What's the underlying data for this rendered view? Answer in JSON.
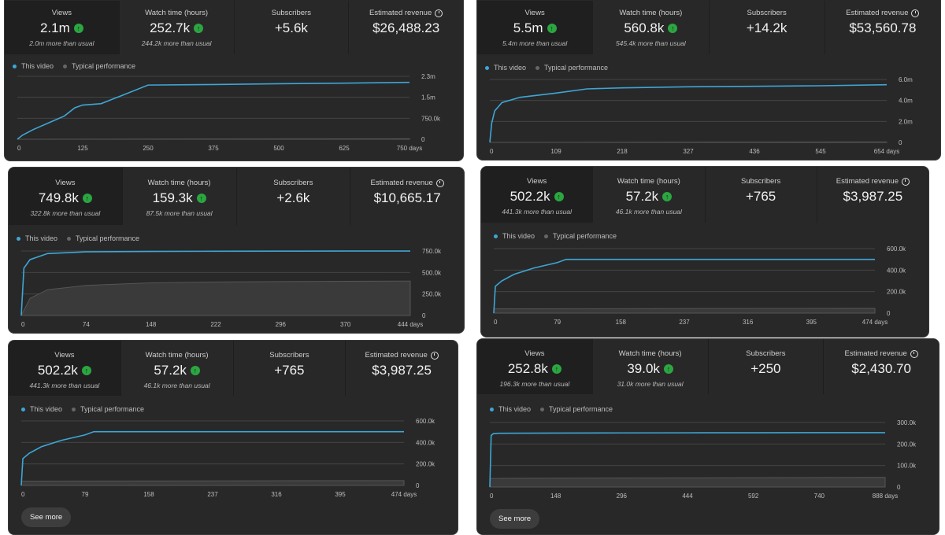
{
  "legend": {
    "this_video": "This video",
    "typical": "Typical performance"
  },
  "see_more": "See more",
  "panels": [
    {
      "metrics": [
        {
          "label": "Views",
          "value": "2.1m",
          "sub": "2.0m more than usual",
          "up": true
        },
        {
          "label": "Watch time (hours)",
          "value": "252.7k",
          "sub": "244.2k more than usual",
          "up": true
        },
        {
          "label": "Subscribers",
          "value": "+5.6k",
          "sub": ""
        },
        {
          "label": "Estimated revenue",
          "value": "$26,488.23",
          "sub": "",
          "clock": true
        }
      ]
    },
    {
      "metrics": [
        {
          "label": "Views",
          "value": "5.5m",
          "sub": "5.4m more than usual",
          "up": true
        },
        {
          "label": "Watch time (hours)",
          "value": "560.8k",
          "sub": "545.4k more than usual",
          "up": true
        },
        {
          "label": "Subscribers",
          "value": "+14.2k",
          "sub": ""
        },
        {
          "label": "Estimated revenue",
          "value": "$53,560.78",
          "sub": "",
          "clock": true
        }
      ]
    },
    {
      "metrics": [
        {
          "label": "Views",
          "value": "749.8k",
          "sub": "322.8k more than usual",
          "up": true
        },
        {
          "label": "Watch time (hours)",
          "value": "159.3k",
          "sub": "87.5k more than usual",
          "up": true
        },
        {
          "label": "Subscribers",
          "value": "+2.6k",
          "sub": ""
        },
        {
          "label": "Estimated revenue",
          "value": "$10,665.17",
          "sub": "",
          "clock": true
        }
      ]
    },
    {
      "metrics": [
        {
          "label": "Views",
          "value": "502.2k",
          "sub": "441.3k more than usual",
          "up": true
        },
        {
          "label": "Watch time (hours)",
          "value": "57.2k",
          "sub": "46.1k more than usual",
          "up": true
        },
        {
          "label": "Subscribers",
          "value": "+765",
          "sub": ""
        },
        {
          "label": "Estimated revenue",
          "value": "$3,987.25",
          "sub": "",
          "clock": true
        }
      ]
    },
    {
      "metrics": [
        {
          "label": "Views",
          "value": "502.2k",
          "sub": "441.3k more than usual",
          "up": true
        },
        {
          "label": "Watch time (hours)",
          "value": "57.2k",
          "sub": "46.1k more than usual",
          "up": true
        },
        {
          "label": "Subscribers",
          "value": "+765",
          "sub": ""
        },
        {
          "label": "Estimated revenue",
          "value": "$3,987.25",
          "sub": "",
          "clock": true
        }
      ]
    },
    {
      "metrics": [
        {
          "label": "Views",
          "value": "252.8k",
          "sub": "196.3k more than usual",
          "up": true
        },
        {
          "label": "Watch time (hours)",
          "value": "39.0k",
          "sub": "31.0k more than usual",
          "up": true
        },
        {
          "label": "Subscribers",
          "value": "+250",
          "sub": ""
        },
        {
          "label": "Estimated revenue",
          "value": "$2,430.70",
          "sub": "",
          "clock": true
        }
      ]
    }
  ],
  "colors": {
    "this_video": "#3ea6d6",
    "typical": "#555555",
    "grid": "#444444"
  },
  "chart_data": [
    {
      "type": "line",
      "xlabel": "",
      "ylabel": "",
      "xlim": [
        0,
        750
      ],
      "ylim": [
        0,
        2300000
      ],
      "x_ticks": [
        "0",
        "125",
        "250",
        "375",
        "500",
        "625",
        "750 days"
      ],
      "y_ticks": [
        "2.3m",
        "1.5m",
        "750.0k",
        "0"
      ],
      "series": [
        {
          "name": "This video",
          "x": [
            0,
            10,
            30,
            60,
            90,
            110,
            125,
            160,
            200,
            250,
            375,
            500,
            625,
            750
          ],
          "y": [
            0,
            150000,
            350000,
            600000,
            850000,
            1150000,
            1250000,
            1300000,
            1600000,
            1980000,
            2000000,
            2030000,
            2050000,
            2080000
          ]
        },
        {
          "name": "Typical performance",
          "x": [
            0,
            750
          ],
          "y": [
            0,
            20000
          ]
        }
      ]
    },
    {
      "type": "line",
      "xlabel": "",
      "ylabel": "",
      "xlim": [
        0,
        654
      ],
      "ylim": [
        0,
        6000000
      ],
      "x_ticks": [
        "0",
        "109",
        "218",
        "327",
        "436",
        "545",
        "654 days"
      ],
      "y_ticks": [
        "6.0m",
        "4.0m",
        "2.0m",
        "0"
      ],
      "series": [
        {
          "name": "This video",
          "x": [
            0,
            3,
            8,
            20,
            50,
            109,
            160,
            218,
            327,
            436,
            545,
            654
          ],
          "y": [
            0,
            1800000,
            3000000,
            3800000,
            4300000,
            4700000,
            5100000,
            5200000,
            5300000,
            5350000,
            5400000,
            5500000
          ]
        },
        {
          "name": "Typical performance",
          "x": [
            0,
            654
          ],
          "y": [
            0,
            50000
          ]
        }
      ]
    },
    {
      "type": "line",
      "xlabel": "",
      "ylabel": "",
      "xlim": [
        0,
        444
      ],
      "ylim": [
        0,
        750000
      ],
      "x_ticks": [
        "0",
        "74",
        "148",
        "222",
        "296",
        "370",
        "444 days"
      ],
      "y_ticks": [
        "750.0k",
        "500.0k",
        "250.0k",
        "0"
      ],
      "series": [
        {
          "name": "This video",
          "x": [
            0,
            3,
            10,
            30,
            74,
            148,
            222,
            296,
            370,
            444
          ],
          "y": [
            0,
            550000,
            650000,
            720000,
            740000,
            745000,
            747000,
            748000,
            749000,
            749800
          ]
        },
        {
          "name": "Typical performance",
          "x": [
            0,
            10,
            30,
            74,
            148,
            222,
            296,
            370,
            444
          ],
          "y": [
            0,
            200000,
            300000,
            350000,
            380000,
            390000,
            395000,
            398000,
            400000
          ]
        }
      ]
    },
    {
      "type": "line",
      "xlabel": "",
      "ylabel": "",
      "xlim": [
        0,
        474
      ],
      "ylim": [
        0,
        600000
      ],
      "x_ticks": [
        "0",
        "79",
        "158",
        "237",
        "316",
        "395",
        "474 days"
      ],
      "y_ticks": [
        "600.0k",
        "400.0k",
        "200.0k",
        "0"
      ],
      "series": [
        {
          "name": "This video",
          "x": [
            0,
            2,
            10,
            25,
            50,
            79,
            90,
            120,
            158,
            237,
            316,
            395,
            474
          ],
          "y": [
            0,
            250000,
            300000,
            360000,
            420000,
            470000,
            500000,
            500000,
            500000,
            500000,
            500000,
            500000,
            500000
          ]
        },
        {
          "name": "Typical performance",
          "x": [
            0,
            474
          ],
          "y": [
            40000,
            45000
          ]
        }
      ]
    },
    {
      "type": "line",
      "xlabel": "",
      "ylabel": "",
      "xlim": [
        0,
        474
      ],
      "ylim": [
        0,
        600000
      ],
      "x_ticks": [
        "0",
        "79",
        "158",
        "237",
        "316",
        "395",
        "474 days"
      ],
      "y_ticks": [
        "600.0k",
        "400.0k",
        "200.0k",
        "0"
      ],
      "series": [
        {
          "name": "This video",
          "x": [
            0,
            2,
            10,
            25,
            50,
            79,
            90,
            120,
            158,
            237,
            316,
            395,
            474
          ],
          "y": [
            0,
            250000,
            300000,
            360000,
            420000,
            470000,
            500000,
            500000,
            500000,
            500000,
            500000,
            500000,
            500000
          ]
        },
        {
          "name": "Typical performance",
          "x": [
            0,
            474
          ],
          "y": [
            40000,
            45000
          ]
        }
      ]
    },
    {
      "type": "line",
      "xlabel": "",
      "ylabel": "",
      "xlim": [
        0,
        888
      ],
      "ylim": [
        0,
        300000
      ],
      "x_ticks": [
        "0",
        "148",
        "296",
        "444",
        "592",
        "740",
        "888 days"
      ],
      "y_ticks": [
        "300.0k",
        "200.0k",
        "100.0k",
        "0"
      ],
      "series": [
        {
          "name": "This video",
          "x": [
            0,
            3,
            8,
            20,
            148,
            296,
            444,
            592,
            740,
            888
          ],
          "y": [
            0,
            240000,
            248000,
            250000,
            251000,
            251500,
            252000,
            252300,
            252600,
            252800
          ]
        },
        {
          "name": "Typical performance",
          "x": [
            0,
            888
          ],
          "y": [
            40000,
            45000
          ]
        }
      ]
    }
  ]
}
